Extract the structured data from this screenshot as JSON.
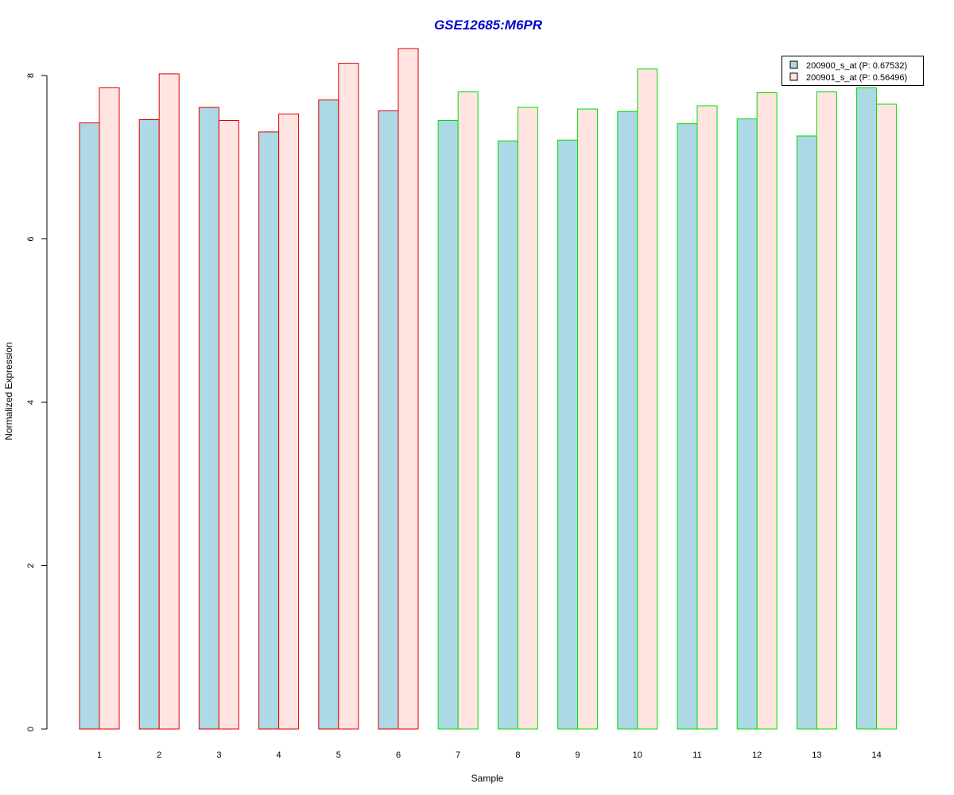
{
  "colors": {
    "series_fill_1": "#add8e6",
    "series_fill_2": "#ffe4e1",
    "group_border_1": "#e00000",
    "group_border_2": "#00dd00",
    "title": "#0000cc",
    "axis": "#000000"
  },
  "chart_data": {
    "type": "bar",
    "title": "GSE12685:M6PR",
    "xlabel": "Sample",
    "ylabel": "Normalized Expression",
    "ylim": [
      0,
      8.3
    ],
    "yticks": [
      0,
      2,
      4,
      6,
      8
    ],
    "grid": false,
    "legend_position": "top-right",
    "categories": [
      "1",
      "2",
      "3",
      "4",
      "5",
      "6",
      "7",
      "8",
      "9",
      "10",
      "11",
      "12",
      "13",
      "14"
    ],
    "groups": [
      1,
      1,
      1,
      1,
      1,
      1,
      2,
      2,
      2,
      2,
      2,
      2,
      2,
      2
    ],
    "series": [
      {
        "name": "200900_s_at (P: 0.67532)",
        "values": [
          7.42,
          7.46,
          7.61,
          7.31,
          7.7,
          7.57,
          7.45,
          7.2,
          7.21,
          7.56,
          7.41,
          7.47,
          7.26,
          7.85
        ]
      },
      {
        "name": "200901_s_at (P: 0.56496)",
        "values": [
          7.85,
          8.02,
          7.45,
          7.53,
          8.15,
          8.33,
          7.8,
          7.61,
          7.59,
          8.08,
          7.63,
          7.79,
          7.8,
          7.65
        ]
      }
    ]
  }
}
